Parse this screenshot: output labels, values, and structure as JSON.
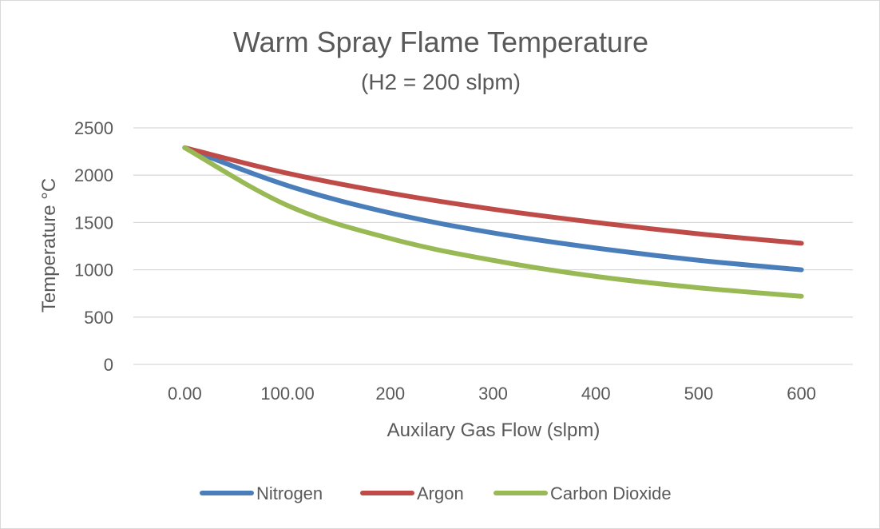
{
  "chart_data": {
    "type": "line",
    "title": "Warm Spray Flame Temperature",
    "subtitle": "(H2 = 200 slpm)",
    "xlabel": "Auxilary Gas Flow (slpm)",
    "ylabel": "Temperature   °C",
    "categories": [
      "0.00",
      "100.00",
      "200",
      "300",
      "400",
      "500",
      "600"
    ],
    "ylim": [
      0,
      2500
    ],
    "yticks": [
      "0",
      "500",
      "1000",
      "1500",
      "2000",
      "2500"
    ],
    "grid": "horizontal",
    "legend_position": "bottom",
    "series": [
      {
        "name": "Nitrogen",
        "color": "#4a7ebb",
        "values": [
          2290,
          1890,
          1600,
          1390,
          1230,
          1100,
          1000
        ]
      },
      {
        "name": "Argon",
        "color": "#be4b48",
        "values": [
          2290,
          2020,
          1810,
          1640,
          1500,
          1380,
          1280
        ]
      },
      {
        "name": "Carbon Dioxide",
        "color": "#98b954",
        "values": [
          2290,
          1680,
          1330,
          1100,
          930,
          810,
          720
        ]
      }
    ]
  }
}
